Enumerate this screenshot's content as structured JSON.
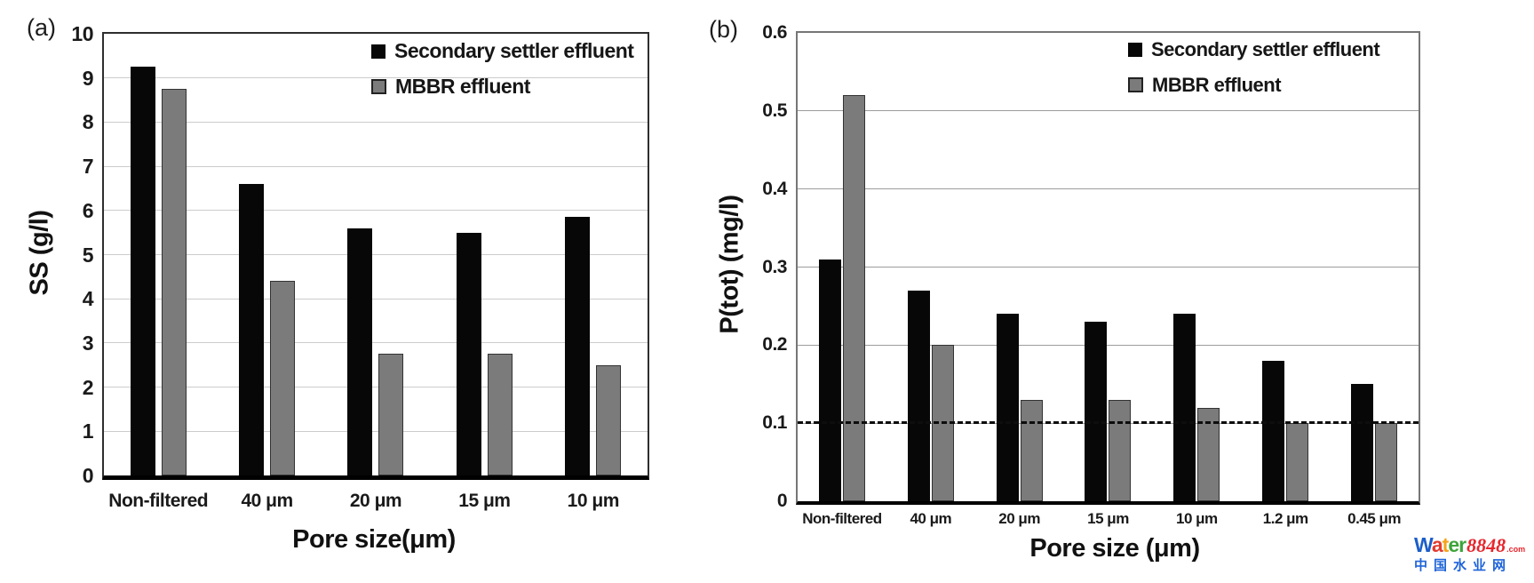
{
  "chart_data": [
    {
      "type": "bar",
      "panel_label": "(a)",
      "categories": [
        "Non-filtered",
        "40 μm",
        "20 μm",
        "15 μm",
        "10 μm"
      ],
      "series": [
        {
          "name": "Secondary settler effluent",
          "color": "#070707",
          "values": [
            9.25,
            6.6,
            5.6,
            5.5,
            5.85
          ]
        },
        {
          "name": "MBBR effluent",
          "color": "#7b7b7b",
          "values": [
            8.75,
            4.4,
            2.75,
            2.75,
            2.5
          ]
        }
      ],
      "xlabel": "Pore size(μm)",
      "ylabel": "SS (g/l)",
      "ylim": [
        0,
        10
      ],
      "yticks": [
        0,
        1,
        2,
        3,
        4,
        5,
        6,
        7,
        8,
        9,
        10
      ],
      "ytick_labels": [
        "0",
        "1",
        "2",
        "3",
        "4",
        "5",
        "6",
        "7",
        "8",
        "9",
        "10"
      ],
      "grid": true,
      "legend_position": "top-right"
    },
    {
      "type": "bar",
      "panel_label": "(b)",
      "categories": [
        "Non-filtered",
        "40 μm",
        "20 μm",
        "15 μm",
        "10 μm",
        "1.2 μm",
        "0.45 μm"
      ],
      "series": [
        {
          "name": "Secondary settler effluent",
          "color": "#070707",
          "values": [
            0.31,
            0.27,
            0.24,
            0.23,
            0.24,
            0.18,
            0.15
          ]
        },
        {
          "name": "MBBR effluent",
          "color": "#7b7b7b",
          "values": [
            0.52,
            0.2,
            0.13,
            0.13,
            0.12,
            0.1,
            0.1
          ]
        }
      ],
      "xlabel": "Pore size (μm)",
      "ylabel": "P(tot) (mg/l)",
      "ylim": [
        0,
        0.6
      ],
      "yticks": [
        0,
        0.1,
        0.2,
        0.3,
        0.4,
        0.5,
        0.6
      ],
      "ytick_labels": [
        "0",
        "0.1",
        "0.2",
        "0.3",
        "0.4",
        "0.5",
        "0.6"
      ],
      "grid": true,
      "dashed_reference_line": 0.1,
      "legend_position": "top-right"
    }
  ],
  "watermark": {
    "brand_letters": [
      {
        "char": "W",
        "color": "#1b5ec9"
      },
      {
        "char": "a",
        "color": "#e23b2e"
      },
      {
        "char": "t",
        "color": "#f6a31b"
      },
      {
        "char": "e",
        "color": "#3ea43b"
      },
      {
        "char": "r",
        "color": "#3ea43b"
      }
    ],
    "brand_number": "8848",
    "brand_tld": ".com",
    "brand_number_color": "#e8262d",
    "subtitle": "中国水业网",
    "subtitle_color": "#1f64d8"
  }
}
